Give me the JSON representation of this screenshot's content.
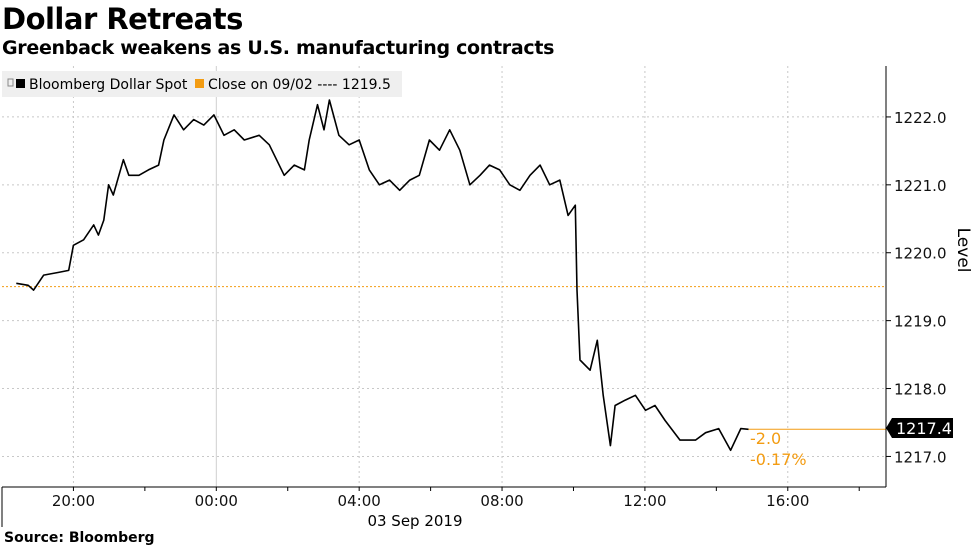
{
  "title": "Dollar Retreats",
  "subtitle": "Greenback weakens as U.S. manufacturing contracts",
  "source": "Source: Bloomberg",
  "chart_data": {
    "type": "line",
    "title": "Dollar Retreats",
    "subtitle": "Greenback weakens as U.S. manufacturing contracts",
    "xlabel": "03 Sep 2019",
    "ylabel": "Level",
    "xlim": [
      "09/02 18:00",
      "09/03 18:45"
    ],
    "ylim": [
      1216.55,
      1222.75
    ],
    "x_tick_labels": [
      {
        "t": "09/02 20:00",
        "label": "20:00"
      },
      {
        "t": "09/03 00:00",
        "label": "00:00"
      },
      {
        "t": "09/03 04:00",
        "label": "04:00"
      },
      {
        "t": "09/03 08:00",
        "label": "08:00"
      },
      {
        "t": "09/03 12:00",
        "label": "12:00"
      },
      {
        "t": "09/03 16:00",
        "label": "16:00"
      }
    ],
    "y_ticks": [
      1217.0,
      1218.0,
      1219.0,
      1220.0,
      1221.0,
      1222.0
    ],
    "y_tick_labels": [
      "1217.0",
      "1218.0",
      "1219.0",
      "1220.0",
      "1221.0",
      "1222.0"
    ],
    "grid": true,
    "legend_placement": "top-left",
    "colors": {
      "series": "#000000",
      "reference": "#f39c12",
      "annotation": "#f39c12"
    },
    "series": [
      {
        "name": "Bloomberg Dollar Spot",
        "x": [
          "09/02 18:24",
          "09/02 18:44",
          "09/02 18:53",
          "09/02 19:10",
          "09/02 19:35",
          "09/02 19:52",
          "09/02 20:00",
          "09/02 20:17",
          "09/02 20:34",
          "09/02 20:42",
          "09/02 20:51",
          "09/02 20:59",
          "09/02 21:07",
          "09/02 21:24",
          "09/02 21:33",
          "09/02 21:50",
          "09/02 22:06",
          "09/02 22:23",
          "09/02 22:32",
          "09/02 22:49",
          "09/02 23:05",
          "09/02 23:22",
          "09/02 23:39",
          "09/02 23:56",
          "09/03 00:13",
          "09/03 00:30",
          "09/03 00:47",
          "09/03 01:12",
          "09/03 01:29",
          "09/03 01:54",
          "09/03 02:11",
          "09/03 02:28",
          "09/03 02:36",
          "09/03 02:50",
          "09/03 03:01",
          "09/03 03:10",
          "09/03 03:26",
          "09/03 03:43",
          "09/03 04:00",
          "09/03 04:17",
          "09/03 04:34",
          "09/03 04:51",
          "09/03 05:08",
          "09/03 05:25",
          "09/03 05:41",
          "09/03 05:58",
          "09/03 06:15",
          "09/03 06:32",
          "09/03 06:49",
          "09/03 07:06",
          "09/03 07:23",
          "09/03 07:39",
          "09/03 07:56",
          "09/03 08:13",
          "09/03 08:30",
          "09/03 08:47",
          "09/03 09:04",
          "09/03 09:20",
          "09/03 09:37",
          "09/03 09:51",
          "09/03 10:03",
          "09/03 10:06",
          "09/03 10:11",
          "09/03 10:28",
          "09/03 10:40",
          "09/03 10:50",
          "09/03 11:02",
          "09/03 11:10",
          "09/03 11:27",
          "09/03 11:44",
          "09/03 12:01",
          "09/03 12:17",
          "09/03 12:34",
          "09/03 12:59",
          "09/03 13:25",
          "09/03 13:42",
          "09/03 14:04",
          "09/03 14:24",
          "09/03 14:41",
          "09/03 14:54"
        ],
        "values": [
          1219.55,
          1219.52,
          1219.45,
          1219.67,
          1219.71,
          1219.74,
          1220.11,
          1220.19,
          1220.41,
          1220.26,
          1220.48,
          1221.0,
          1220.85,
          1221.37,
          1221.14,
          1221.14,
          1221.22,
          1221.29,
          1221.66,
          1222.03,
          1221.81,
          1221.96,
          1221.88,
          1222.03,
          1221.73,
          1221.81,
          1221.66,
          1221.73,
          1221.59,
          1221.14,
          1221.29,
          1221.22,
          1221.66,
          1222.18,
          1221.81,
          1222.25,
          1221.73,
          1221.59,
          1221.66,
          1221.22,
          1221.0,
          1221.07,
          1220.92,
          1221.07,
          1221.14,
          1221.66,
          1221.51,
          1221.81,
          1221.51,
          1221.0,
          1221.14,
          1221.29,
          1221.22,
          1221.0,
          1220.92,
          1221.14,
          1221.29,
          1221.0,
          1221.07,
          1220.55,
          1220.7,
          1219.45,
          1218.42,
          1218.27,
          1218.71,
          1217.9,
          1217.16,
          1217.75,
          1217.83,
          1217.9,
          1217.68,
          1217.75,
          1217.53,
          1217.24,
          1217.24,
          1217.35,
          1217.41,
          1217.09,
          1217.41,
          1217.4
        ]
      }
    ],
    "reference_line": {
      "name": "Close on 09/02",
      "value": 1219.5
    },
    "legend": [
      {
        "label": "Bloomberg Dollar Spot",
        "color": "#000000"
      },
      {
        "label": "Close on 09/02 ---- 1219.5",
        "color": "#f39c12"
      }
    ],
    "last_value_label": "1217.4",
    "annotations": {
      "change": "-2.0",
      "change_pct": "-0.17%"
    }
  }
}
